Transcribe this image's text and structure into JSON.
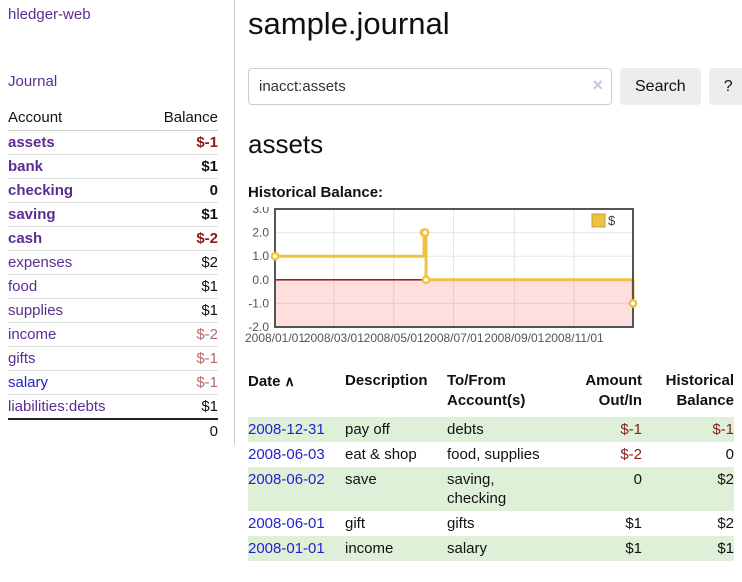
{
  "app": {
    "title": "hledger-web"
  },
  "colors": {
    "purple_link": "#5c2d91",
    "blue_link": "#2222cc",
    "negative_strong": "#8b1a1a",
    "negative_soft": "#b36a6a",
    "row_stripe_green": "#dff0d8",
    "chart_gold": "#edc240",
    "chart_negative_fill": "rgba(255,0,0,0.13)",
    "chart_zero_line": "#8b0000",
    "chart_border": "#545454"
  },
  "sidebar": {
    "nav_journal": "Journal",
    "accounts": {
      "header_account": "Account",
      "header_balance": "Balance",
      "rows": [
        {
          "account": "assets",
          "balance": "$-1",
          "indent": 1,
          "bold": true,
          "balance_style": "neg-strong"
        },
        {
          "account": "bank",
          "balance": "$1",
          "indent": 2,
          "bold": true,
          "balance_style": ""
        },
        {
          "account": "checking",
          "balance": "0",
          "indent": 3,
          "bold": true,
          "balance_style": ""
        },
        {
          "account": "saving",
          "balance": "$1",
          "indent": 3,
          "bold": true,
          "balance_style": ""
        },
        {
          "account": "cash",
          "balance": "$-2",
          "indent": 2,
          "bold": true,
          "balance_style": "neg-strong"
        },
        {
          "account": "expenses",
          "balance": "$2",
          "indent": 1,
          "bold": false,
          "balance_style": ""
        },
        {
          "account": "food",
          "balance": "$1",
          "indent": 2,
          "bold": false,
          "balance_style": ""
        },
        {
          "account": "supplies",
          "balance": "$1",
          "indent": 2,
          "bold": false,
          "balance_style": ""
        },
        {
          "account": "income",
          "balance": "$-2",
          "indent": 1,
          "bold": false,
          "balance_style": "neg-soft"
        },
        {
          "account": "gifts",
          "balance": "$-1",
          "indent": 2,
          "bold": false,
          "balance_style": "neg-soft"
        },
        {
          "account": "salary",
          "balance": "$-1",
          "indent": 2,
          "bold": false,
          "balance_style": "neg-soft",
          "link_style": "blue"
        },
        {
          "account": "liabilities:debts",
          "balance": "$1",
          "indent": 1,
          "bold": false,
          "balance_style": "",
          "last": true
        }
      ],
      "total": "0"
    }
  },
  "main": {
    "title": "sample.journal",
    "search": {
      "value": "inacct:assets",
      "clear_icon": "×",
      "button_label": "Search",
      "help_label": "?"
    },
    "account_heading": "assets"
  },
  "chart_data": {
    "type": "line",
    "step": true,
    "title": "Historical Balance:",
    "xlim": [
      "2008-01-01",
      "2008-12-31"
    ],
    "ylim": [
      -2,
      3
    ],
    "x_ticks": [
      "2008/01/01",
      "2008/03/01",
      "2008/05/01",
      "2008/07/01",
      "2008/09/01",
      "2008/11/01"
    ],
    "y_ticks": [
      3,
      2,
      1,
      0,
      -1,
      -2
    ],
    "series": [
      {
        "name": "$",
        "color": "#edc240",
        "points": [
          [
            "2008-01-01",
            1
          ],
          [
            "2008-06-01",
            2
          ],
          [
            "2008-06-02",
            2
          ],
          [
            "2008-06-03",
            0
          ],
          [
            "2008-12-31",
            -1
          ]
        ]
      }
    ],
    "grid": true,
    "negative_fill": "rgba(255,0,0,0.13)",
    "zero_line_color": "#8b0000",
    "legend": {
      "label": "$",
      "position": "top-right"
    }
  },
  "register": {
    "headers": [
      {
        "label": "Date",
        "sort_icon": "∧",
        "align": "left"
      },
      {
        "label": "Description",
        "align": "left"
      },
      {
        "label": "To/From Account(s)",
        "align": "left"
      },
      {
        "label": "Amount Out/In",
        "align": "right"
      },
      {
        "label": "Historical Balance",
        "align": "right"
      }
    ],
    "rows": [
      {
        "date": "2008-12-31",
        "description": "pay off",
        "accounts": "debts",
        "amount": "$-1",
        "amount_negative": true,
        "balance": "$-1",
        "balance_negative": true
      },
      {
        "date": "2008-06-03",
        "description": "eat & shop",
        "accounts": "food, supplies",
        "amount": "$-2",
        "amount_negative": true,
        "balance": "0",
        "balance_negative": false
      },
      {
        "date": "2008-06-02",
        "description": "save",
        "accounts": "saving, checking",
        "amount": "0",
        "amount_negative": false,
        "balance": "$2",
        "balance_negative": false
      },
      {
        "date": "2008-06-01",
        "description": "gift",
        "accounts": "gifts",
        "amount": "$1",
        "amount_negative": false,
        "balance": "$2",
        "balance_negative": false
      },
      {
        "date": "2008-01-01",
        "description": "income",
        "accounts": "salary",
        "amount": "$1",
        "amount_negative": false,
        "balance": "$1",
        "balance_negative": false
      }
    ]
  }
}
